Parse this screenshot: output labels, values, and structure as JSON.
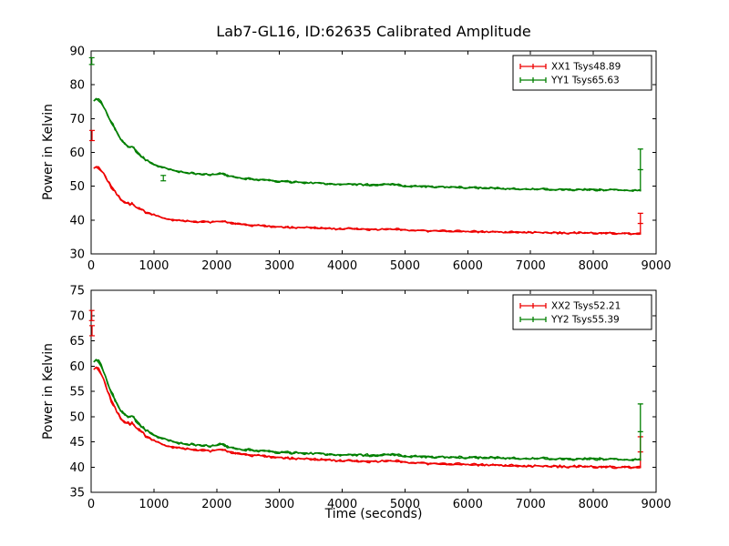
{
  "figure": {
    "title": "Lab7-GL16, ID:62635 Calibrated Amplitude",
    "background": "#ffffff",
    "colors": {
      "red": "#ee0000",
      "green": "#007f00"
    }
  },
  "chart_data": [
    {
      "type": "line",
      "title": "",
      "xlabel": "",
      "ylabel": "Power in Kelvin",
      "xlim": [
        0,
        9000
      ],
      "ylim": [
        30,
        90
      ],
      "xticks": [
        0,
        1000,
        2000,
        3000,
        4000,
        5000,
        6000,
        7000,
        8000,
        9000
      ],
      "yticks": [
        30,
        40,
        50,
        60,
        70,
        80,
        90
      ],
      "grid": false,
      "legend_position": "top-right",
      "scatter": 0.35,
      "series": [
        {
          "id": "xx1",
          "name": "XX1 Tsys48.89",
          "color": "#ee0000",
          "points": [
            [
              40,
              55.3
            ],
            [
              80,
              55.8
            ],
            [
              120,
              55.6
            ],
            [
              160,
              54.8
            ],
            [
              200,
              53.6
            ],
            [
              260,
              51.8
            ],
            [
              320,
              50.0
            ],
            [
              380,
              48.4
            ],
            [
              440,
              47.0
            ],
            [
              500,
              45.9
            ],
            [
              560,
              45.1
            ],
            [
              620,
              44.9
            ],
            [
              680,
              44.6
            ],
            [
              740,
              43.6
            ],
            [
              800,
              43.0
            ],
            [
              900,
              42.2
            ],
            [
              1000,
              41.5
            ],
            [
              1100,
              40.9
            ],
            [
              1200,
              40.5
            ],
            [
              1300,
              40.1
            ],
            [
              1400,
              39.9
            ],
            [
              1500,
              39.7
            ],
            [
              1600,
              39.6
            ],
            [
              1700,
              39.5
            ],
            [
              1800,
              39.5
            ],
            [
              1900,
              39.4
            ],
            [
              2000,
              39.5
            ],
            [
              2050,
              39.7
            ],
            [
              2100,
              39.6
            ],
            [
              2200,
              39.1
            ],
            [
              2300,
              38.9
            ],
            [
              2400,
              38.7
            ],
            [
              2500,
              38.5
            ],
            [
              2700,
              38.3
            ],
            [
              2900,
              38.1
            ],
            [
              3100,
              37.9
            ],
            [
              3300,
              37.8
            ],
            [
              3500,
              37.7
            ],
            [
              3700,
              37.5
            ],
            [
              3900,
              37.4
            ],
            [
              4100,
              37.4
            ],
            [
              4300,
              37.3
            ],
            [
              4500,
              37.2
            ],
            [
              4700,
              37.3
            ],
            [
              4800,
              37.4
            ],
            [
              4900,
              37.2
            ],
            [
              5000,
              37.0
            ],
            [
              5200,
              36.9
            ],
            [
              5400,
              36.8
            ],
            [
              5600,
              36.8
            ],
            [
              5800,
              36.7
            ],
            [
              6000,
              36.6
            ],
            [
              6300,
              36.5
            ],
            [
              6600,
              36.4
            ],
            [
              6900,
              36.4
            ],
            [
              7200,
              36.3
            ],
            [
              7500,
              36.2
            ],
            [
              7800,
              36.2
            ],
            [
              8100,
              36.1
            ],
            [
              8400,
              36.1
            ],
            [
              8700,
              36.0
            ],
            [
              8760,
              36.0
            ]
          ],
          "outliers": [
            {
              "x": 15,
              "y": 65.0,
              "err": 1.5
            }
          ],
          "end_spike": {
            "x": 8750,
            "base": 36.0,
            "top": 42.0
          }
        },
        {
          "id": "yy1",
          "name": "YY1 Tsys65.63",
          "color": "#007f00",
          "points": [
            [
              40,
              75.2
            ],
            [
              80,
              75.8
            ],
            [
              120,
              75.6
            ],
            [
              160,
              74.8
            ],
            [
              200,
              73.4
            ],
            [
              260,
              71.2
            ],
            [
              320,
              69.0
            ],
            [
              380,
              66.9
            ],
            [
              440,
              65.0
            ],
            [
              500,
              63.4
            ],
            [
              560,
              62.2
            ],
            [
              620,
              61.6
            ],
            [
              680,
              61.3
            ],
            [
              740,
              60.0
            ],
            [
              800,
              59.0
            ],
            [
              900,
              57.6
            ],
            [
              1000,
              56.5
            ],
            [
              1100,
              55.8
            ],
            [
              1200,
              55.2
            ],
            [
              1300,
              54.8
            ],
            [
              1400,
              54.4
            ],
            [
              1500,
              54.1
            ],
            [
              1600,
              53.9
            ],
            [
              1700,
              53.7
            ],
            [
              1800,
              53.6
            ],
            [
              1900,
              53.5
            ],
            [
              2000,
              53.5
            ],
            [
              2050,
              53.8
            ],
            [
              2100,
              53.6
            ],
            [
              2200,
              53.0
            ],
            [
              2300,
              52.7
            ],
            [
              2400,
              52.4
            ],
            [
              2500,
              52.2
            ],
            [
              2700,
              51.9
            ],
            [
              2900,
              51.6
            ],
            [
              3100,
              51.4
            ],
            [
              3300,
              51.2
            ],
            [
              3500,
              51.0
            ],
            [
              3700,
              50.8
            ],
            [
              3900,
              50.7
            ],
            [
              4100,
              50.6
            ],
            [
              4300,
              50.5
            ],
            [
              4500,
              50.4
            ],
            [
              4700,
              50.5
            ],
            [
              4800,
              50.6
            ],
            [
              4900,
              50.3
            ],
            [
              5000,
              50.1
            ],
            [
              5200,
              50.0
            ],
            [
              5400,
              49.9
            ],
            [
              5600,
              49.8
            ],
            [
              5800,
              49.7
            ],
            [
              6000,
              49.6
            ],
            [
              6300,
              49.4
            ],
            [
              6600,
              49.3
            ],
            [
              6900,
              49.2
            ],
            [
              7200,
              49.1
            ],
            [
              7500,
              49.0
            ],
            [
              7800,
              49.0
            ],
            [
              8100,
              48.9
            ],
            [
              8400,
              48.9
            ],
            [
              8700,
              48.8
            ],
            [
              8760,
              48.8
            ]
          ],
          "outliers": [
            {
              "x": 10,
              "y": 87.0,
              "err": 1.0
            },
            {
              "x": 1150,
              "y": 52.4,
              "err": 0.8
            }
          ],
          "end_spike": {
            "x": 8750,
            "base": 48.8,
            "top": 61.0
          }
        }
      ]
    },
    {
      "type": "line",
      "title": "",
      "xlabel": "Time (seconds)",
      "ylabel": "Power in Kelvin",
      "xlim": [
        0,
        9000
      ],
      "ylim": [
        35,
        75
      ],
      "xticks": [
        0,
        1000,
        2000,
        3000,
        4000,
        5000,
        6000,
        7000,
        8000,
        9000
      ],
      "yticks": [
        35,
        40,
        45,
        50,
        55,
        60,
        65,
        70,
        75
      ],
      "grid": false,
      "legend_position": "top-right",
      "scatter": 0.28,
      "series": [
        {
          "id": "xx2",
          "name": "XX2 Tsys52.21",
          "color": "#ee0000",
          "points": [
            [
              40,
              59.3
            ],
            [
              80,
              59.8
            ],
            [
              120,
              59.5
            ],
            [
              160,
              58.6
            ],
            [
              200,
              57.2
            ],
            [
              260,
              55.2
            ],
            [
              320,
              53.3
            ],
            [
              380,
              51.7
            ],
            [
              440,
              50.4
            ],
            [
              500,
              49.4
            ],
            [
              560,
              48.8
            ],
            [
              620,
              48.7
            ],
            [
              680,
              48.5
            ],
            [
              740,
              47.6
            ],
            [
              800,
              46.9
            ],
            [
              900,
              46.0
            ],
            [
              1000,
              45.2
            ],
            [
              1100,
              44.7
            ],
            [
              1200,
              44.3
            ],
            [
              1300,
              44.0
            ],
            [
              1400,
              43.8
            ],
            [
              1500,
              43.6
            ],
            [
              1600,
              43.5
            ],
            [
              1700,
              43.4
            ],
            [
              1800,
              43.3
            ],
            [
              1900,
              43.2
            ],
            [
              2000,
              43.3
            ],
            [
              2050,
              43.6
            ],
            [
              2100,
              43.4
            ],
            [
              2200,
              42.9
            ],
            [
              2300,
              42.7
            ],
            [
              2400,
              42.5
            ],
            [
              2500,
              42.4
            ],
            [
              2700,
              42.2
            ],
            [
              2900,
              42.0
            ],
            [
              3100,
              41.8
            ],
            [
              3300,
              41.7
            ],
            [
              3500,
              41.5
            ],
            [
              3700,
              41.4
            ],
            [
              3900,
              41.3
            ],
            [
              4100,
              41.2
            ],
            [
              4300,
              41.1
            ],
            [
              4500,
              41.1
            ],
            [
              4700,
              41.2
            ],
            [
              4800,
              41.3
            ],
            [
              4900,
              41.1
            ],
            [
              5000,
              40.9
            ],
            [
              5200,
              40.8
            ],
            [
              5400,
              40.7
            ],
            [
              5600,
              40.6
            ],
            [
              5800,
              40.6
            ],
            [
              6000,
              40.5
            ],
            [
              6300,
              40.4
            ],
            [
              6600,
              40.3
            ],
            [
              6900,
              40.2
            ],
            [
              7200,
              40.2
            ],
            [
              7500,
              40.1
            ],
            [
              7800,
              40.1
            ],
            [
              8100,
              40.0
            ],
            [
              8400,
              40.0
            ],
            [
              8700,
              40.0
            ],
            [
              8760,
              40.0
            ]
          ],
          "outliers": [
            {
              "x": 10,
              "y": 70.0,
              "err": 1.0
            },
            {
              "x": 15,
              "y": 67.0,
              "err": 1.0
            }
          ],
          "end_spike": {
            "x": 8750,
            "base": 40.0,
            "top": 46.0
          }
        },
        {
          "id": "yy2",
          "name": "YY2 Tsys55.39",
          "color": "#007f00",
          "points": [
            [
              40,
              60.8
            ],
            [
              80,
              61.2
            ],
            [
              120,
              61.0
            ],
            [
              160,
              60.1
            ],
            [
              200,
              58.8
            ],
            [
              260,
              56.8
            ],
            [
              320,
              54.9
            ],
            [
              380,
              53.2
            ],
            [
              440,
              51.9
            ],
            [
              500,
              50.9
            ],
            [
              560,
              50.2
            ],
            [
              620,
              50.0
            ],
            [
              680,
              49.8
            ],
            [
              740,
              48.9
            ],
            [
              800,
              48.2
            ],
            [
              900,
              47.2
            ],
            [
              1000,
              46.4
            ],
            [
              1100,
              45.8
            ],
            [
              1200,
              45.4
            ],
            [
              1300,
              45.1
            ],
            [
              1400,
              44.8
            ],
            [
              1500,
              44.6
            ],
            [
              1600,
              44.5
            ],
            [
              1700,
              44.4
            ],
            [
              1800,
              44.3
            ],
            [
              1900,
              44.2
            ],
            [
              2000,
              44.3
            ],
            [
              2050,
              44.6
            ],
            [
              2100,
              44.4
            ],
            [
              2200,
              43.9
            ],
            [
              2300,
              43.7
            ],
            [
              2400,
              43.5
            ],
            [
              2500,
              43.4
            ],
            [
              2700,
              43.2
            ],
            [
              2900,
              43.0
            ],
            [
              3100,
              42.9
            ],
            [
              3300,
              42.8
            ],
            [
              3500,
              42.7
            ],
            [
              3700,
              42.6
            ],
            [
              3900,
              42.5
            ],
            [
              4100,
              42.4
            ],
            [
              4300,
              42.4
            ],
            [
              4500,
              42.3
            ],
            [
              4700,
              42.4
            ],
            [
              4800,
              42.5
            ],
            [
              4900,
              42.3
            ],
            [
              5000,
              42.2
            ],
            [
              5200,
              42.1
            ],
            [
              5400,
              42.0
            ],
            [
              5600,
              42.0
            ],
            [
              5800,
              41.9
            ],
            [
              6000,
              41.9
            ],
            [
              6300,
              41.8
            ],
            [
              6600,
              41.8
            ],
            [
              6900,
              41.7
            ],
            [
              7200,
              41.7
            ],
            [
              7500,
              41.6
            ],
            [
              7800,
              41.6
            ],
            [
              8100,
              41.6
            ],
            [
              8400,
              41.5
            ],
            [
              8700,
              41.5
            ],
            [
              8760,
              41.5
            ]
          ],
          "outliers": [],
          "end_spike": {
            "x": 8750,
            "base": 41.5,
            "top": 52.5
          }
        }
      ]
    }
  ]
}
